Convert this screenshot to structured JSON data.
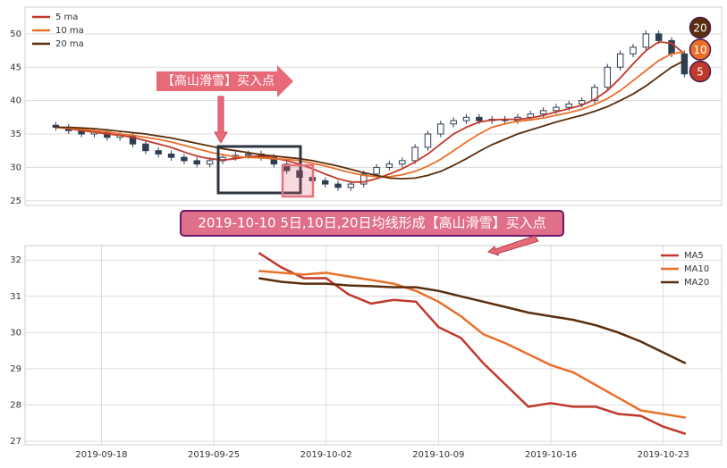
{
  "chart_data": [
    {
      "type": "candlestick",
      "legend": "upper left",
      "grid": true,
      "annotation": "【高山滑雪】买入点",
      "badges": [
        "20",
        "10",
        "5"
      ],
      "x": [
        0,
        1,
        2,
        3,
        4,
        5,
        6,
        7,
        8,
        9,
        10,
        11,
        12,
        13,
        14,
        15,
        16,
        17,
        18,
        19,
        20,
        21,
        22,
        23,
        24,
        25,
        26,
        27,
        28,
        29,
        30,
        31,
        32,
        33,
        34,
        35,
        36,
        37,
        38,
        39,
        40,
        41,
        42,
        43,
        44,
        45,
        46,
        47,
        48,
        49
      ],
      "xlim": [
        -2.4,
        51.9
      ],
      "ylim": [
        24.3,
        54
      ],
      "yticks": [
        25,
        30,
        35,
        40,
        45,
        50
      ],
      "open": [
        36.3,
        36,
        35.5,
        35,
        35.3,
        34.5,
        34.8,
        33.5,
        32.5,
        32,
        31.5,
        31,
        30.5,
        31,
        31.5,
        31.8,
        32,
        31.5,
        30.5,
        29.5,
        28.5,
        28,
        27.5,
        27,
        27.5,
        29,
        30,
        30.5,
        31,
        33,
        35,
        36.5,
        37,
        37.5,
        37,
        37.2,
        37,
        37.5,
        38,
        38.5,
        39,
        39.5,
        40,
        42,
        45,
        47,
        48,
        50,
        49,
        47
      ],
      "high": [
        36.8,
        36.5,
        36,
        35.8,
        35.8,
        35.3,
        35.3,
        34,
        33,
        32.5,
        32,
        31.5,
        31.5,
        32,
        32.3,
        32.5,
        32.5,
        32,
        31,
        30,
        29,
        28.5,
        28,
        28,
        29.5,
        30.5,
        31,
        31.5,
        33.5,
        35.5,
        37,
        37.5,
        38,
        38,
        37.7,
        37.7,
        38,
        38.5,
        39,
        39.5,
        40,
        40.5,
        42.5,
        45.5,
        47.5,
        48.5,
        50.5,
        50.5,
        49.5,
        47.5
      ],
      "low": [
        35.5,
        35,
        34.5,
        34.5,
        34,
        34,
        33,
        32,
        31.5,
        31,
        30.5,
        30,
        30,
        30.5,
        31,
        31.3,
        31,
        30,
        29,
        28,
        27.5,
        27,
        26.5,
        26.5,
        27,
        28.5,
        29.5,
        30,
        30.5,
        32.5,
        34.5,
        36,
        36.5,
        36.5,
        36.5,
        36.5,
        36.5,
        37,
        37.5,
        38,
        38.5,
        39,
        39.5,
        41.5,
        44.5,
        46.5,
        47.5,
        48.5,
        46.5,
        43.5
      ],
      "close": [
        36,
        35.5,
        35,
        35.3,
        34.5,
        34.8,
        33.5,
        32.5,
        32,
        31.5,
        31,
        30.5,
        31,
        31.5,
        31.8,
        32,
        31.5,
        30.5,
        29.5,
        28.5,
        28,
        27.5,
        27,
        27.5,
        29,
        30,
        30.5,
        31,
        33,
        35,
        36.5,
        37,
        37.5,
        37,
        37.2,
        37,
        37.5,
        38,
        38.5,
        39,
        39.5,
        40,
        42,
        45,
        47,
        48,
        50,
        49,
        47,
        44
      ],
      "series": [
        {
          "name": "5 ma",
          "color": "#c0392b",
          "values": [
            36,
            35.8,
            35.5,
            35.3,
            35,
            34.8,
            34.5,
            34,
            33.5,
            33,
            32.3,
            31.7,
            31.3,
            31.1,
            31.3,
            31.6,
            31.7,
            31.4,
            31,
            30.5,
            29.8,
            29,
            28.3,
            27.8,
            27.8,
            28.3,
            29,
            29.8,
            30.8,
            32,
            33.5,
            35,
            36,
            36.8,
            37.1,
            37.2,
            37.2,
            37.4,
            37.8,
            38.3,
            38.8,
            39.3,
            40.2,
            41.5,
            43.4,
            45.5,
            47.5,
            48.8,
            48.6,
            47
          ]
        },
        {
          "name": "10 ma",
          "color": "#e8702a",
          "values": [
            36,
            35.9,
            35.7,
            35.5,
            35.3,
            35,
            34.8,
            34.5,
            34.2,
            33.8,
            33.3,
            32.8,
            32.3,
            31.9,
            31.6,
            31.5,
            31.4,
            31.3,
            31.2,
            31,
            30.6,
            30.2,
            29.7,
            29.2,
            28.8,
            28.6,
            28.6,
            28.9,
            29.4,
            30.2,
            31.2,
            32.5,
            33.8,
            35,
            36,
            36.5,
            36.9,
            37.1,
            37.4,
            37.8,
            38.2,
            38.7,
            39.4,
            40.3,
            41.5,
            43,
            44.5,
            46,
            47,
            47.3
          ]
        },
        {
          "name": "20 ma",
          "color": "#5a2d0c",
          "values": [
            36,
            36,
            35.9,
            35.8,
            35.6,
            35.4,
            35.2,
            35,
            34.7,
            34.4,
            34,
            33.6,
            33.2,
            32.8,
            32.5,
            32.2,
            31.9,
            31.7,
            31.5,
            31.3,
            31,
            30.6,
            30.2,
            29.7,
            29.2,
            28.8,
            28.4,
            28.3,
            28.4,
            28.8,
            29.4,
            30.3,
            31.3,
            32.4,
            33.4,
            34.2,
            35,
            35.6,
            36.2,
            36.8,
            37.3,
            37.8,
            38.4,
            39.1,
            40,
            41,
            42.2,
            43.6,
            45,
            46
          ]
        }
      ]
    },
    {
      "type": "line",
      "legend": "upper right",
      "grid": true,
      "annotation": "2019-10-10 5日,10日,20日均线形成【高山滑雪】买入点",
      "x": [
        0,
        1,
        2,
        3,
        4,
        5,
        6,
        7,
        8,
        9,
        10,
        11,
        12,
        13,
        14,
        15,
        16,
        17,
        18,
        19
      ],
      "xlim": [
        -10.4,
        20.6
      ],
      "xticks": [
        {
          "value": -7,
          "label": "2019-09-18"
        },
        {
          "value": -2,
          "label": "2019-09-25"
        },
        {
          "value": 3,
          "label": "2019-10-02"
        },
        {
          "value": 8,
          "label": "2019-10-09"
        },
        {
          "value": 13,
          "label": "2019-10-16"
        },
        {
          "value": 18,
          "label": "2019-10-23"
        }
      ],
      "ylim": [
        26.9,
        32.4
      ],
      "yticks": [
        27,
        28,
        29,
        30,
        31,
        32
      ],
      "series": [
        {
          "name": "MA5",
          "color": "#c0392b",
          "values": [
            32.2,
            31.8,
            31.5,
            31.5,
            31.05,
            30.8,
            30.9,
            30.85,
            30.15,
            29.85,
            29.15,
            28.55,
            27.95,
            28.05,
            27.95,
            27.95,
            27.75,
            27.7,
            27.4,
            27.2
          ]
        },
        {
          "name": "MA10",
          "color": "#e8702a",
          "values": [
            31.7,
            31.65,
            31.6,
            31.65,
            31.55,
            31.45,
            31.35,
            31.15,
            30.85,
            30.45,
            29.95,
            29.7,
            29.4,
            29.1,
            28.9,
            28.55,
            28.2,
            27.85,
            27.75,
            27.65
          ]
        },
        {
          "name": "MA20",
          "color": "#5a2d0c",
          "values": [
            31.5,
            31.4,
            31.35,
            31.35,
            31.3,
            31.28,
            31.25,
            31.25,
            31.15,
            31.0,
            30.85,
            30.7,
            30.55,
            30.45,
            30.35,
            30.2,
            30.0,
            29.75,
            29.45,
            29.15
          ]
        }
      ]
    }
  ]
}
